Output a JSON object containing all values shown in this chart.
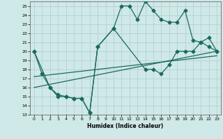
{
  "xlabel": "Humidex (Indice chaleur)",
  "bg_color": "#cfe8e8",
  "grid_color": "#b0cccc",
  "line_color": "#1a6b5a",
  "xlim": [
    -0.5,
    23.5
  ],
  "ylim": [
    13,
    25.5
  ],
  "xticks": [
    0,
    1,
    2,
    3,
    4,
    5,
    6,
    7,
    8,
    9,
    10,
    11,
    12,
    13,
    14,
    15,
    16,
    17,
    18,
    19,
    20,
    21,
    22,
    23
  ],
  "yticks": [
    13,
    14,
    15,
    16,
    17,
    18,
    19,
    20,
    21,
    22,
    23,
    24,
    25
  ],
  "series1_x": [
    0,
    1,
    2,
    3,
    4,
    5,
    6,
    7,
    8,
    10,
    11,
    12,
    13,
    14,
    15,
    16,
    17,
    18,
    19,
    20,
    21,
    22,
    23
  ],
  "series1_y": [
    20,
    17.5,
    16,
    15,
    15,
    14.8,
    14.8,
    13.2,
    20.5,
    22.5,
    25,
    25,
    23.5,
    25.5,
    24.5,
    23.5,
    23.2,
    23.2,
    24.5,
    21.2,
    21,
    20.5,
    20
  ],
  "series2_x": [
    0,
    2,
    3,
    4,
    5,
    6,
    7,
    8,
    10,
    14,
    15,
    16,
    17,
    18,
    19,
    20,
    21,
    22,
    23
  ],
  "series2_y": [
    20,
    16,
    15.2,
    15,
    14.8,
    14.8,
    13.2,
    20.5,
    22.5,
    18,
    18,
    17.5,
    18.5,
    20,
    20,
    20,
    21,
    21.5,
    20
  ],
  "series3_x": [
    0,
    23
  ],
  "series3_y": [
    16,
    20
  ],
  "series4_x": [
    0,
    23
  ],
  "series4_y": [
    17.2,
    19.5
  ],
  "marker_size": 2.5,
  "line_width": 0.9
}
